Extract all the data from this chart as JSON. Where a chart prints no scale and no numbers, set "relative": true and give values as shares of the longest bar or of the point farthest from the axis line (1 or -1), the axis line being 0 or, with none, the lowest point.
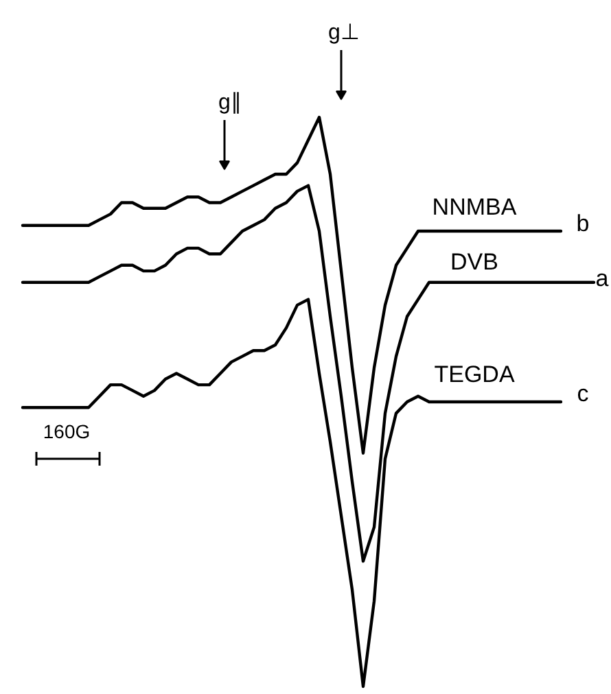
{
  "chart_data": {
    "type": "line",
    "relative": true,
    "categories": [
      null,
      null,
      null,
      null,
      null,
      null,
      null,
      null,
      null,
      null,
      null,
      null,
      null,
      null,
      null,
      null,
      null,
      null,
      null,
      null,
      null,
      null,
      null,
      null,
      null,
      null,
      null,
      null,
      null,
      null,
      null,
      null,
      null,
      null,
      null,
      null,
      null,
      null,
      null,
      null,
      null,
      null,
      null,
      null,
      null,
      null,
      null,
      null,
      null,
      null,
      null,
      null,
      null,
      null
    ],
    "series": [
      {
        "name": "NNMBA",
        "color": "#000000",
        "values": [
          null,
          0.81,
          0.81,
          0.81,
          0.81,
          0.81,
          0.81,
          0.81,
          0.82,
          0.83,
          0.85,
          0.85,
          0.84,
          0.84,
          0.84,
          0.85,
          0.86,
          0.86,
          0.85,
          0.85,
          0.86,
          0.87,
          0.88,
          0.89,
          0.9,
          0.9,
          0.92,
          0.96,
          1.0,
          0.9,
          0.73,
          0.56,
          0.41,
          0.56,
          0.67,
          0.74,
          0.77,
          0.8,
          0.8,
          0.8,
          0.8,
          0.8,
          0.8,
          0.8,
          0.8,
          0.8,
          0.8,
          0.8,
          0.8,
          0.8,
          0.8,
          null,
          null,
          null
        ]
      },
      {
        "name": "DVB",
        "color": "#000000",
        "values": [
          null,
          0.71,
          0.71,
          0.71,
          0.71,
          0.71,
          0.71,
          0.71,
          0.72,
          0.73,
          0.74,
          0.74,
          0.73,
          0.73,
          0.74,
          0.76,
          0.77,
          0.77,
          0.76,
          0.76,
          0.78,
          0.8,
          0.81,
          0.82,
          0.84,
          0.85,
          0.87,
          0.88,
          0.8,
          0.65,
          0.51,
          0.36,
          0.22,
          0.28,
          0.48,
          0.58,
          0.65,
          0.68,
          0.71,
          0.71,
          0.71,
          0.71,
          0.71,
          0.71,
          0.71,
          0.71,
          0.71,
          0.71,
          0.71,
          0.71,
          0.71,
          0.71,
          0.71,
          0.71
        ]
      },
      {
        "name": "TEGDA",
        "color": "#000000",
        "values": [
          null,
          0.49,
          0.49,
          0.49,
          0.49,
          0.49,
          0.49,
          0.49,
          0.51,
          0.53,
          0.53,
          0.52,
          0.51,
          0.52,
          0.54,
          0.55,
          0.54,
          0.53,
          0.53,
          0.55,
          0.57,
          0.58,
          0.59,
          0.59,
          0.6,
          0.63,
          0.67,
          0.68,
          0.55,
          0.43,
          0.3,
          0.17,
          0,
          0.15,
          0.4,
          0.48,
          0.5,
          0.51,
          0.5,
          0.5,
          0.5,
          0.5,
          0.5,
          0.5,
          0.5,
          0.5,
          0.5,
          0.5,
          0.5,
          0.5,
          0.5,
          null,
          null,
          null
        ]
      }
    ],
    "annotations": [
      "g∥",
      "g⊥",
      "b",
      "a",
      "c",
      "160G"
    ]
  }
}
